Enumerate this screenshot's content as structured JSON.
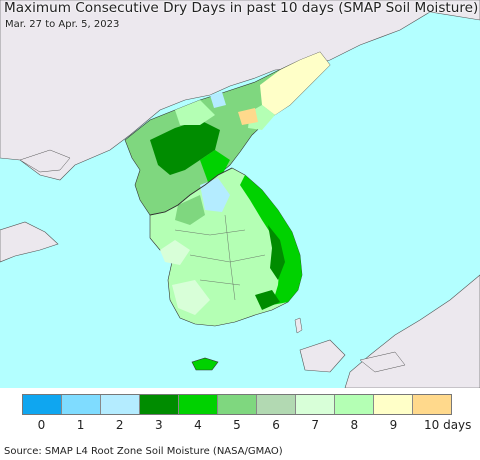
{
  "header": {
    "title": "Maximum Consecutive Dry Days in past 10 days (SMAP Soil Moisture)",
    "date_range": "Mar. 27 to Apr. 5, 2023"
  },
  "legend": {
    "labels": [
      "0",
      "1",
      "2",
      "3",
      "4",
      "5",
      "6",
      "7",
      "8",
      "9"
    ],
    "unit_label": "10 days",
    "colors": [
      "#0fa6f0",
      "#7fdcff",
      "#b4ecff",
      "#008c00",
      "#00d200",
      "#7fd77f",
      "#b2d9b2",
      "#d8ffd8",
      "#b4ffb4",
      "#ffffc8",
      "#ffd98c"
    ]
  },
  "map": {
    "ocean_color": "#b3ffff",
    "land_other_color": "#ece8ee",
    "border_color": "#333333"
  },
  "footer": {
    "source": "Source: SMAP L4 Root Zone Soil Moisture (NASA/GMAO)"
  }
}
